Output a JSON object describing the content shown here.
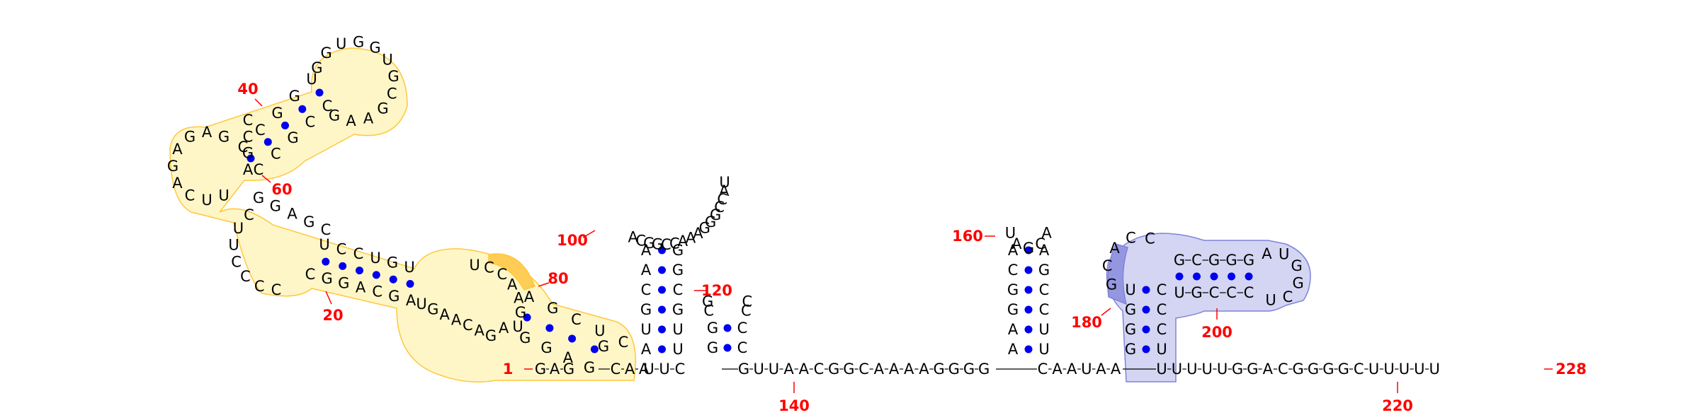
{
  "colors": {
    "number": "#ff0000",
    "pair_dot": "#0000ee",
    "backbone": "#000000",
    "yellow_fill": "#fff6c8",
    "yellow_stroke": "#ffc83c",
    "yellow_dark": "#ffcc55",
    "blue_fill": "#d3d5f2",
    "blue_stroke": "#8082dc",
    "blue_dark": "#9496e0"
  },
  "numbers": [
    "1",
    "20",
    "40",
    "60",
    "80",
    "100",
    "120",
    "140",
    "160",
    "180",
    "200",
    "220",
    "228"
  ],
  "main_strand": {
    "left_5prime": [
      "G",
      "A",
      "G"
    ],
    "after_helix": [
      "C",
      "A",
      "A"
    ],
    "mid_a": [
      "U",
      "U",
      "C"
    ],
    "mid_b": [
      "G",
      "U",
      "U",
      "A",
      "A",
      "C",
      "G",
      "G",
      "C",
      "A",
      "A",
      "A",
      "A",
      "G",
      "G",
      "G",
      "G"
    ],
    "mid_c": [
      "C",
      "A",
      "A",
      "U",
      "A",
      "A"
    ],
    "tail": [
      "U",
      "U",
      "U",
      "U",
      "U",
      "G",
      "G",
      "A",
      "C",
      "G",
      "G",
      "G",
      "G",
      "C",
      "U",
      "U",
      "U",
      "U",
      "U"
    ]
  },
  "hairpin_100": {
    "left_stem": [
      "A",
      "U",
      "G",
      "C",
      "A",
      "A"
    ],
    "right_stem": [
      "G",
      "G",
      "C",
      "G",
      "U",
      "U"
    ],
    "loop": [
      "A",
      "C",
      "G",
      "G",
      "C",
      "C",
      "A",
      "A",
      "A",
      "G",
      "G",
      "G",
      "C",
      "C",
      "A",
      "U"
    ]
  },
  "hairpin_120": {
    "left_stem": [
      "G",
      "G"
    ],
    "right_stem": [
      "C",
      "C"
    ],
    "loop": [
      "C",
      "C",
      "G",
      "C"
    ]
  },
  "hairpin_160": {
    "left_stem": [
      "A",
      "A",
      "G",
      "G",
      "C",
      "A"
    ],
    "right_stem": [
      "U",
      "U",
      "C",
      "C",
      "G",
      "A"
    ],
    "loop": [
      "U",
      "A",
      "G",
      "C",
      "A"
    ]
  },
  "blue_domain": {
    "stem_left": [
      "G",
      "G",
      "G",
      "U"
    ],
    "stem_right": [
      "U",
      "C",
      "C",
      "C"
    ],
    "bulge": [
      "G",
      "C",
      "A",
      "C",
      "C"
    ],
    "arm_top": [
      "G",
      "C",
      "G",
      "G",
      "G"
    ],
    "arm_bottom": [
      "U",
      "G",
      "C",
      "C",
      "C"
    ],
    "loop": [
      "A",
      "U",
      "G",
      "G",
      "C",
      "U"
    ]
  },
  "yellow_domain": {
    "stem1_bottom": [
      "G",
      "A",
      "G",
      "G",
      "A"
    ],
    "stem1_top": [
      "C",
      "U",
      "C",
      "G",
      "A"
    ],
    "stem1_extra": [
      "G"
    ],
    "stem1_upper": [
      "A",
      "U",
      "C",
      "C",
      "U"
    ],
    "interior_right": [
      "U",
      "C",
      "C",
      "A",
      "A",
      "G",
      "U"
    ],
    "interior_left": [
      "G",
      "A",
      "C",
      "A",
      "A",
      "G",
      "U"
    ],
    "stem2_lower": [
      "C",
      "G",
      "G",
      "A",
      "C",
      "G",
      "A"
    ],
    "stem2_upper": [
      "U",
      "C",
      "C",
      "U",
      "G",
      "U"
    ],
    "left_loop_bottom": [
      "C",
      "C",
      "C",
      "C",
      "U",
      "U",
      "C"
    ],
    "upper_stem_a": [
      "G",
      "G",
      "A",
      "G",
      "C"
    ],
    "upper_stem_b": [
      "A",
      "G",
      "C",
      "C"
    ],
    "left_hairpin": [
      "U",
      "U",
      "C",
      "A",
      "G",
      "A",
      "G",
      "A",
      "G"
    ],
    "top_stem_left": [
      "C",
      "C",
      "G",
      "G",
      "U"
    ],
    "top_stem_right": [
      "C",
      "C",
      "G",
      "C",
      "C"
    ],
    "top_loop": [
      "G",
      "G",
      "U",
      "G",
      "G",
      "U",
      "G",
      "C",
      "G",
      "A",
      "A",
      "G"
    ]
  }
}
